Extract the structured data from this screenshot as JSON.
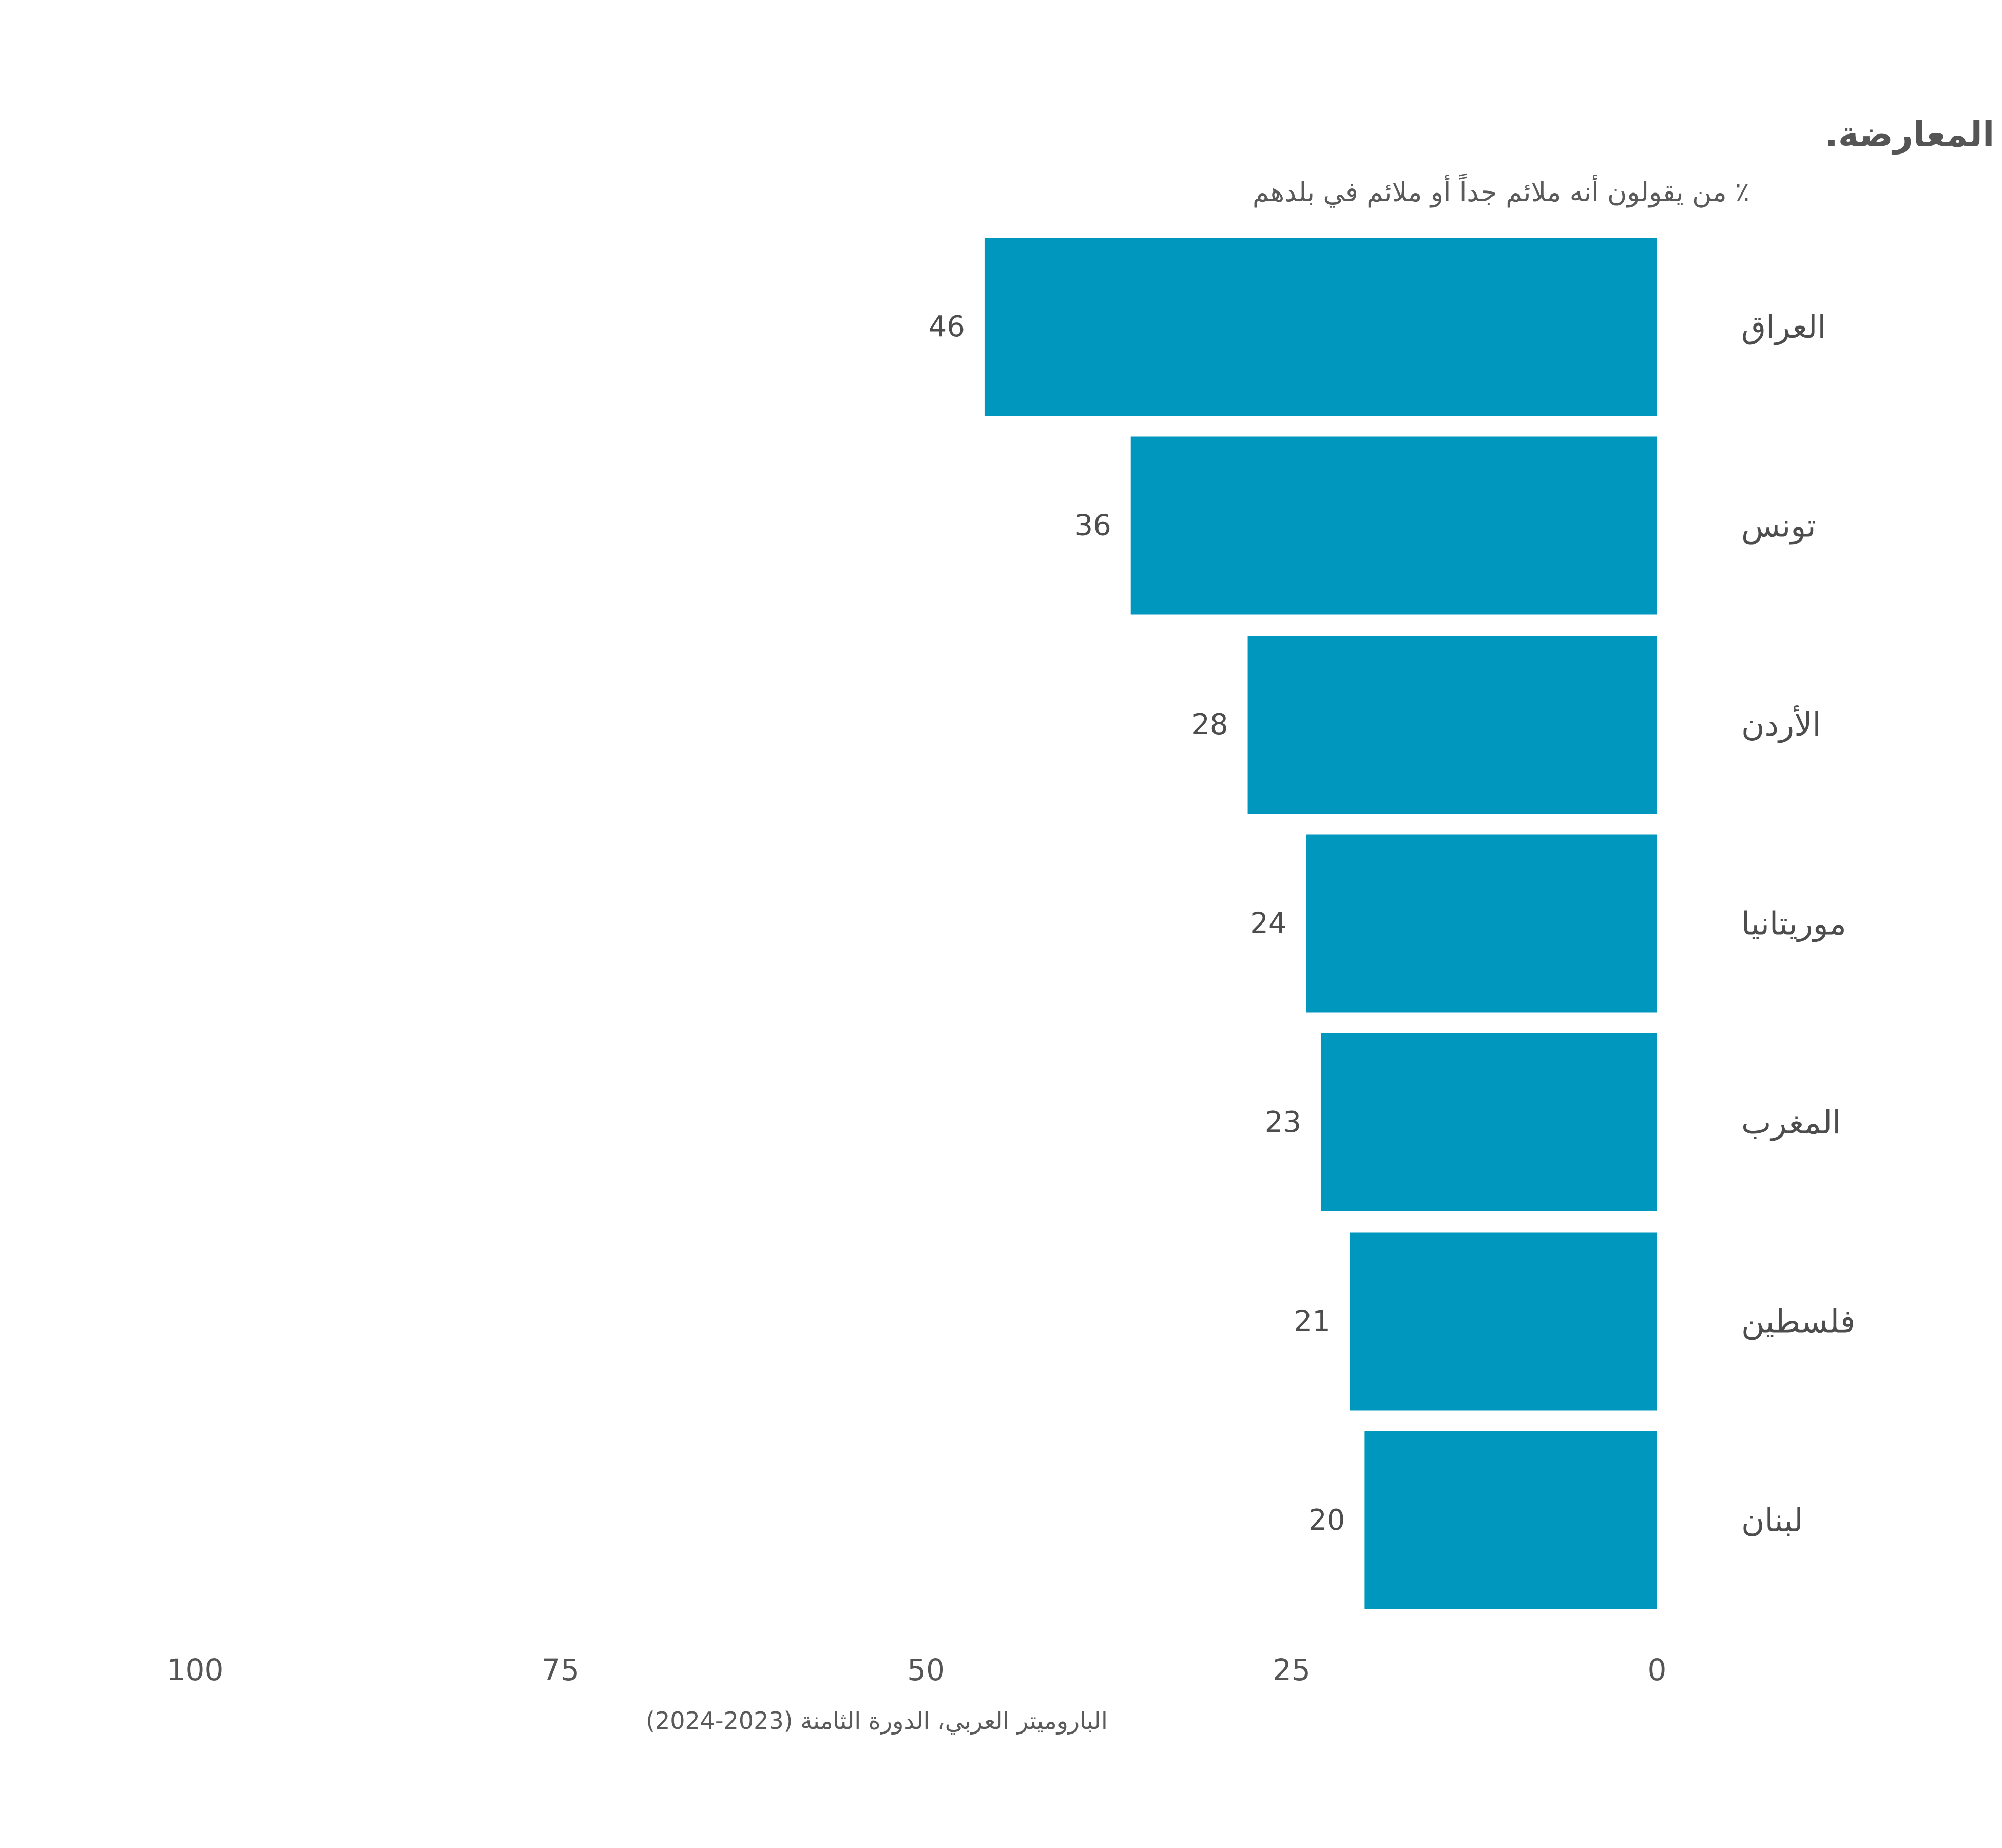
{
  "chart_data": {
    "type": "bar",
    "orientation": "horizontal",
    "title": "نظام سياسي تتولى فيه الحكم سلطة قوية تأخذ القرارات دون اعتبار لنتائج الانتخابات أو لرأي المعارضة.",
    "subtitle": "٪ من يقولون أنه ملائم جداً أو ملائم في بلدهم",
    "categories": [
      "العراق",
      "تونس",
      "الأردن",
      "موريتانيا",
      "المغرب",
      "فلسطين",
      "لبنان"
    ],
    "values": [
      46,
      36,
      28,
      24,
      23,
      21,
      20
    ],
    "xlim": [
      0,
      100
    ],
    "x_direction": "reversed",
    "x_ticks": [
      0,
      25,
      50,
      75,
      100
    ],
    "grid": false,
    "bar_color": "#0097bf",
    "source": "الباروميتر العربي، الدورة الثامنة (2023-2024)"
  }
}
